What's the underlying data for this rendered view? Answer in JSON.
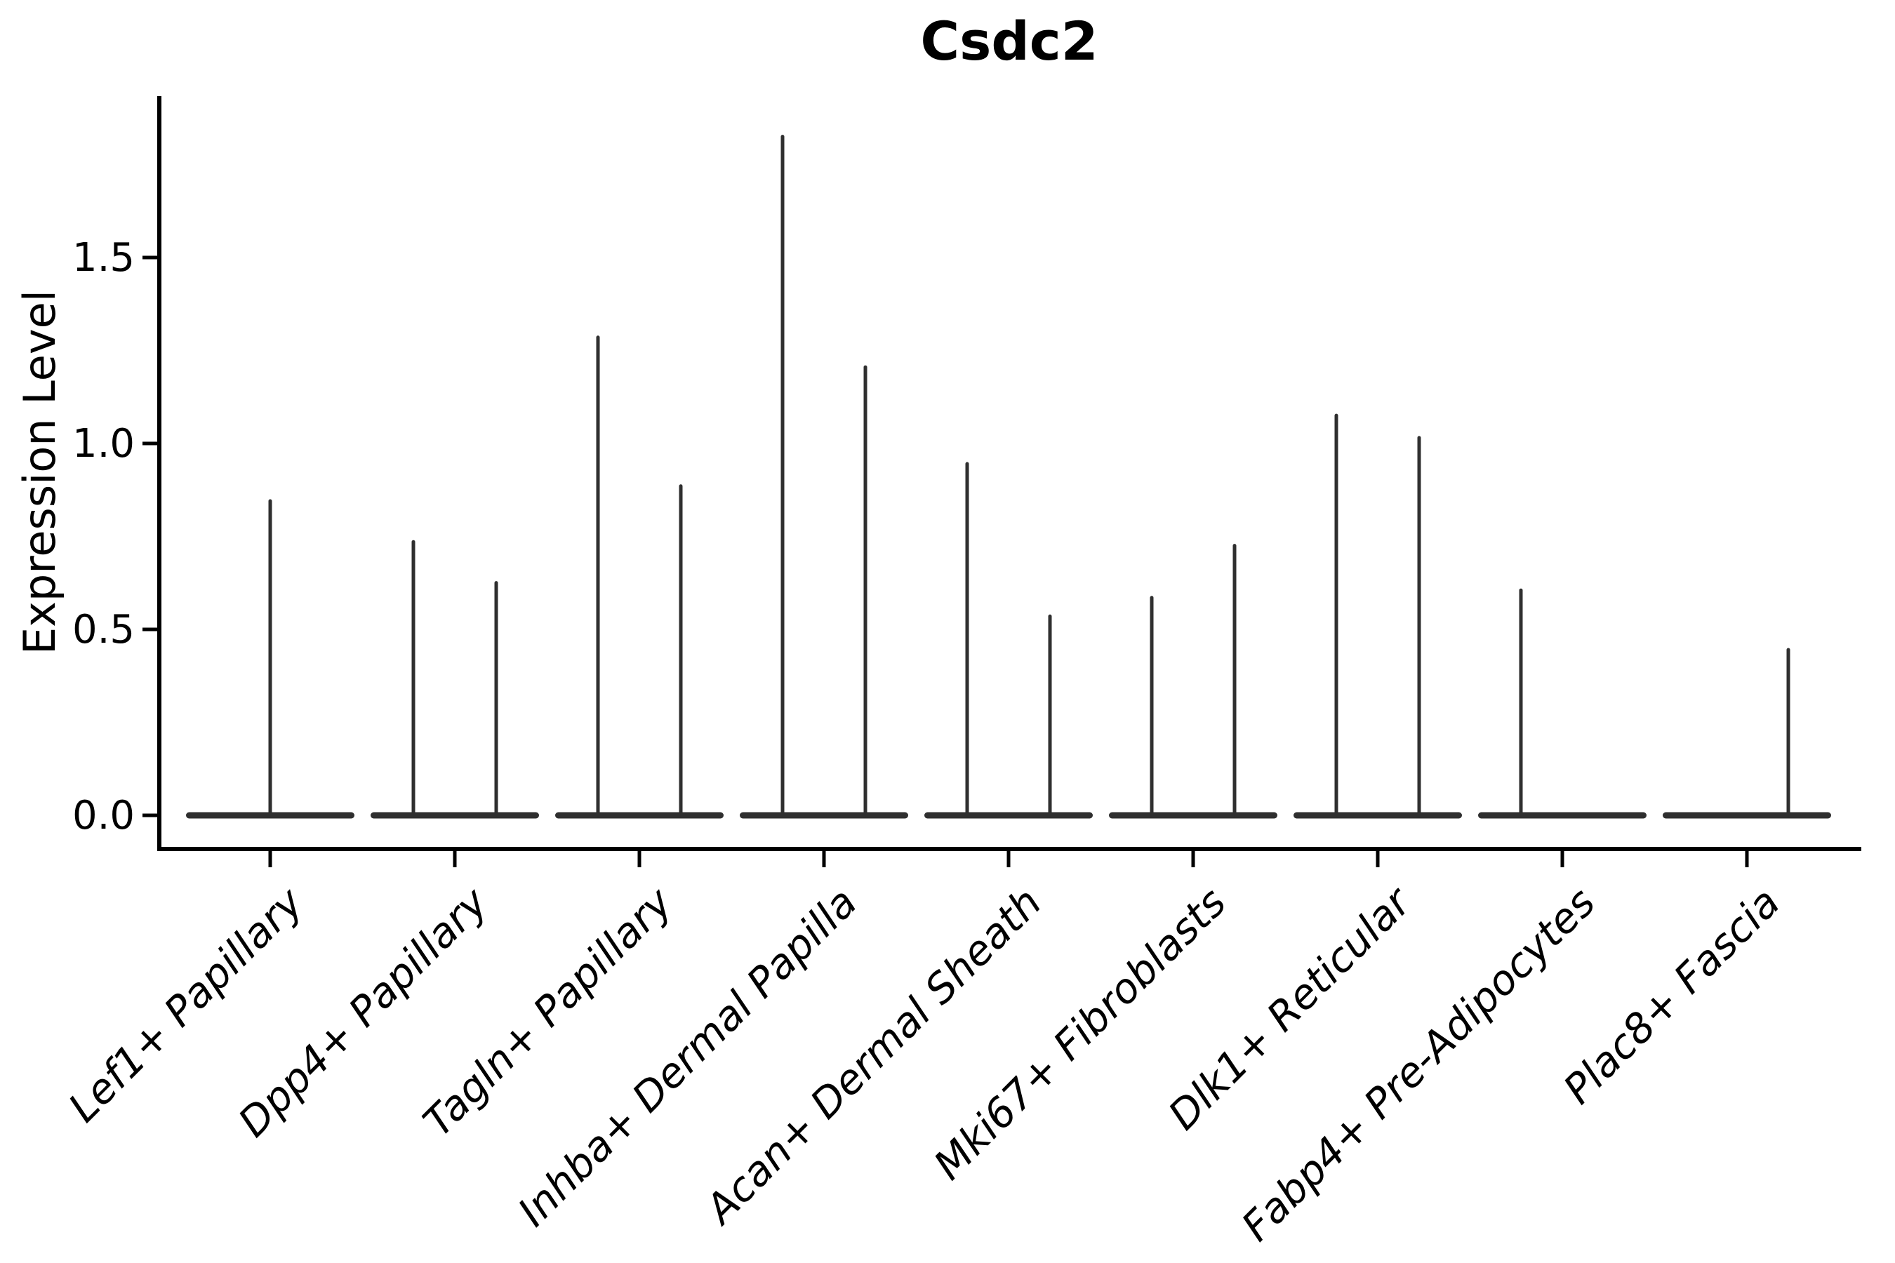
{
  "chart_data": {
    "type": "violin",
    "title": "Csdc2",
    "xlabel": "",
    "ylabel": "Expression Level",
    "yticks": [
      0.0,
      0.5,
      1.0,
      1.5
    ],
    "ytick_labels": [
      "0.0",
      "0.5",
      "1.0",
      "1.5"
    ],
    "ylim": [
      -0.09,
      1.93
    ],
    "grid": false,
    "legend": "none",
    "violin_color": "#2f2f2f",
    "axis_color": "#000000",
    "categories": [
      "Lef1+ Papillary",
      "Dpp4+ Papillary",
      "Tagln+ Papillary",
      "Inhba+ Dermal Papilla",
      "Acan+ Dermal Sheath",
      "Mki67+ Fibroblasts",
      "Dlk1+ Reticular",
      "Fabp4+ Pre-Adipocytes",
      "Plac8+ Fascia"
    ],
    "violins": [
      {
        "category": "Lef1+ Papillary",
        "split": false,
        "baseline_mass_at_zero": true,
        "max_expression": [
          0.85
        ]
      },
      {
        "category": "Dpp4+ Papillary",
        "split": true,
        "baseline_mass_at_zero": true,
        "max_expression": [
          0.74,
          0.63
        ]
      },
      {
        "category": "Tagln+ Papillary",
        "split": true,
        "baseline_mass_at_zero": true,
        "max_expression": [
          1.29,
          0.89
        ]
      },
      {
        "category": "Inhba+ Dermal Papilla",
        "split": true,
        "baseline_mass_at_zero": true,
        "max_expression": [
          1.83,
          1.21
        ]
      },
      {
        "category": "Acan+ Dermal Sheath",
        "split": true,
        "baseline_mass_at_zero": true,
        "max_expression": [
          0.95,
          0.54
        ]
      },
      {
        "category": "Mki67+ Fibroblasts",
        "split": true,
        "baseline_mass_at_zero": true,
        "max_expression": [
          0.59,
          0.73
        ]
      },
      {
        "category": "Dlk1+ Reticular",
        "split": true,
        "baseline_mass_at_zero": true,
        "max_expression": [
          1.08,
          1.02
        ]
      },
      {
        "category": "Fabp4+ Pre-Adipocytes",
        "split": true,
        "baseline_mass_at_zero": true,
        "max_expression": [
          0.61,
          null
        ]
      },
      {
        "category": "Plac8+ Fascia",
        "split": true,
        "baseline_mass_at_zero": true,
        "max_expression": [
          null,
          0.45
        ]
      }
    ]
  }
}
